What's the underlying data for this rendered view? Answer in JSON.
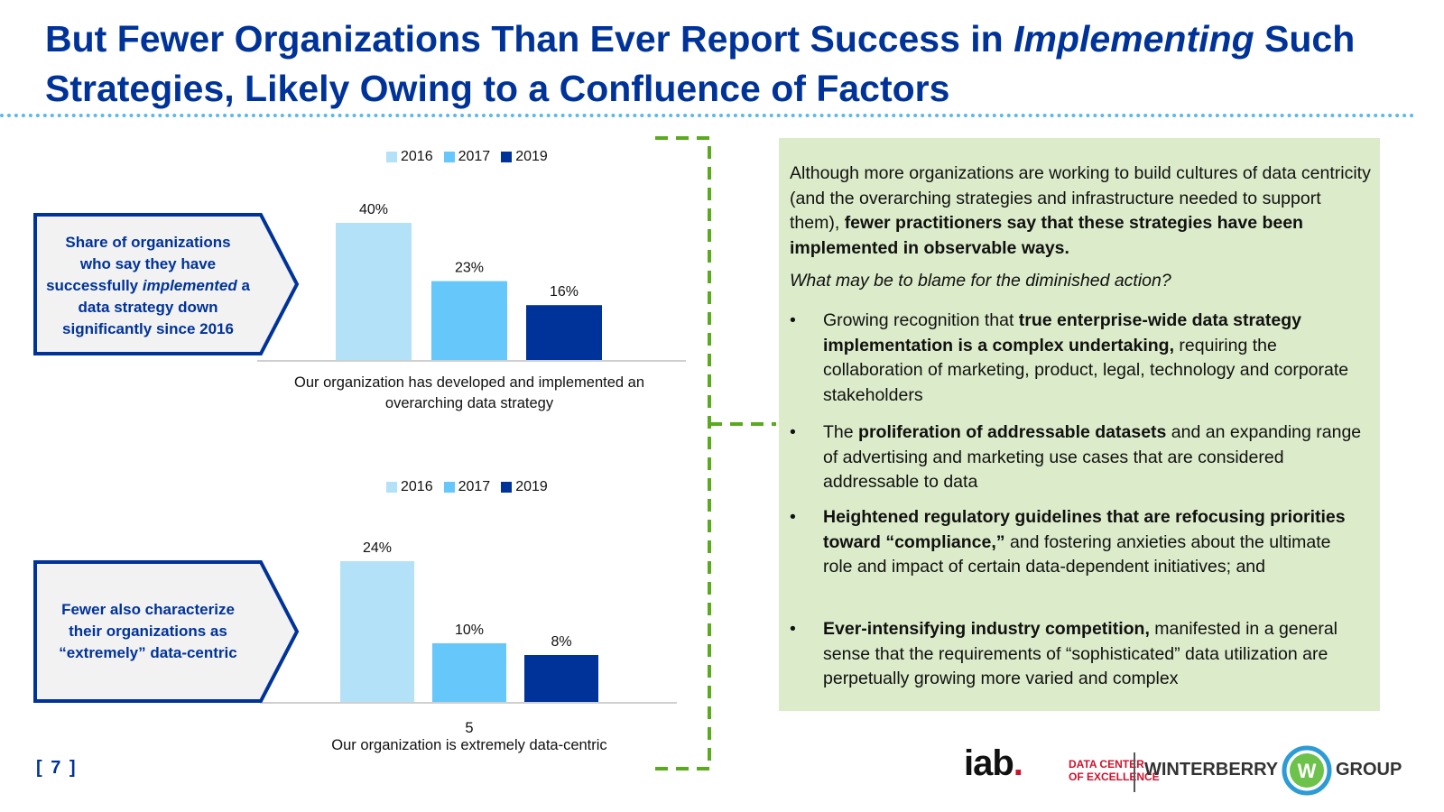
{
  "title": {
    "line1_pre": "But Fewer Organizations Than Ever Report Success in ",
    "line1_em": "Implementing",
    "line1_post": " Such",
    "line2": "Strategies, Likely Owing to a Confluence of Factors"
  },
  "colors": {
    "c2016": "#b3e2f8",
    "c2017": "#66c7fb",
    "c2019": "#003399",
    "accent": "#003399",
    "dashed": "#5aaa1e",
    "panel": "#dcebc9"
  },
  "chart_data": [
    {
      "type": "bar",
      "title": "",
      "categories": [
        "Our organization has developed and implemented an overarching data strategy"
      ],
      "series": [
        {
          "name": "2016",
          "values": [
            40
          ]
        },
        {
          "name": "2017",
          "values": [
            23
          ]
        },
        {
          "name": "2019",
          "values": [
            16
          ]
        }
      ],
      "labels": [
        "40%",
        "23%",
        "16%"
      ],
      "ylim": [
        0,
        40
      ],
      "legend": "top-center",
      "caption_line1": "Our organization has developed and implemented an",
      "caption_line2": "overarching data strategy"
    },
    {
      "type": "bar",
      "title": "",
      "categories": [
        "Our organization is extremely data-centric"
      ],
      "series": [
        {
          "name": "2016",
          "values": [
            24
          ]
        },
        {
          "name": "2017",
          "values": [
            10
          ]
        },
        {
          "name": "2019",
          "values": [
            8
          ]
        }
      ],
      "labels": [
        "24%",
        "10%",
        "8%"
      ],
      "ylim": [
        0,
        24
      ],
      "legend": "top-center",
      "tick": "5",
      "caption_line1": "Our organization is extremely data-centric"
    }
  ],
  "callout1": {
    "line1": "Share of organizations",
    "line2": "who say they have",
    "line3_pre": "successfully ",
    "line3_em": "implemented",
    "line3_post": " a",
    "line4": "data strategy down",
    "line5": "significantly since 2016"
  },
  "callout2": {
    "line1": "Fewer also characterize",
    "line2": "their organizations as",
    "line3": "“extremely” data-centric"
  },
  "panel": {
    "intro_plain": "Although more organizations are working to build cultures of data centricity (and the overarching strategies and infrastructure needed to support them), ",
    "intro_bold": "fewer practitioners say that these strategies have been implemented in observable ways.",
    "question": "What may be to blame for the diminished action?",
    "bullet_char": "•",
    "b1_pre": "Growing recognition that ",
    "b1_bold": "true enterprise-wide data strategy implementation is a complex undertaking,",
    "b1_post": " requiring the collaboration of marketing, product, legal, technology and corporate stakeholders",
    "b2_pre": " The ",
    "b2_bold": "proliferation of addressable datasets",
    "b2_post": " and an expanding range of advertising and marketing use cases that are considered addressable to data",
    "b3_bold": "Heightened regulatory guidelines that are refocusing priorities toward “compliance,”",
    "b3_post": " and fostering anxieties about the ultimate role and impact of certain data-dependent initiatives; and",
    "b4_bold": "Ever-intensifying industry competition,",
    "b4_post": " manifested in a general sense that the requirements of “sophisticated” data utilization are perpetually growing more varied and complex"
  },
  "footer": {
    "page": "[ 7 ]",
    "iab_text": "iab",
    "iab_dot": ".",
    "dce_line1": "DATA CENTER",
    "dce_line2": "OF EXCELLENCE",
    "winterberry": "WINTERBERRY",
    "w_letter": "W",
    "group": "GROUP"
  }
}
